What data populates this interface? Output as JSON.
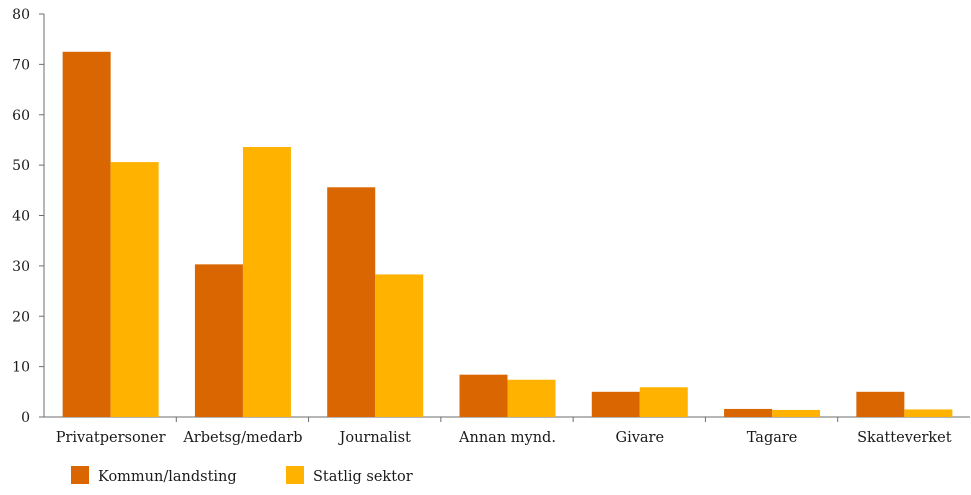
{
  "chart_data": {
    "type": "bar",
    "title": "",
    "xlabel": "",
    "ylabel": "",
    "ylim": [
      0,
      80
    ],
    "yticks": [
      0,
      10,
      20,
      30,
      40,
      50,
      60,
      70,
      80
    ],
    "grid": false,
    "legend_position": "bottom-left",
    "categories": [
      "Privatpersoner",
      "Arbetsg/medarb",
      "Journalist",
      "Annan mynd.",
      "Givare",
      "Tagare",
      "Skatteverket"
    ],
    "series": [
      {
        "name": "Kommun/landsting",
        "color": "#d96600",
        "values": [
          72.5,
          30.3,
          45.6,
          8.4,
          5.0,
          1.6,
          5.0
        ]
      },
      {
        "name": "Statlig sektor",
        "color": "#ffb300",
        "values": [
          50.6,
          53.6,
          28.3,
          7.4,
          5.9,
          1.4,
          1.5
        ]
      }
    ]
  }
}
